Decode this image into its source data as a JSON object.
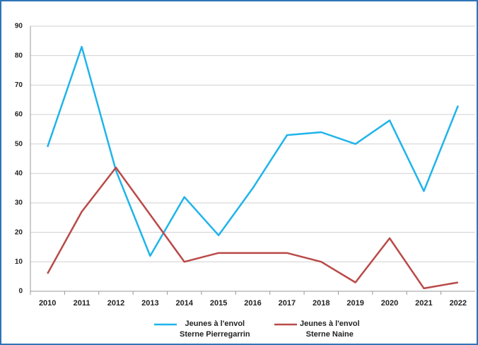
{
  "chart_data": {
    "type": "line",
    "categories": [
      "2010",
      "2011",
      "2012",
      "2013",
      "2014",
      "2015",
      "2016",
      "2017",
      "2018",
      "2019",
      "2020",
      "2021",
      "2022"
    ],
    "series": [
      {
        "name": "Jeunes à l'envol\nSterne Pierregarrin",
        "color": "#1fb4ea",
        "values": [
          49,
          83,
          41,
          12,
          32,
          19,
          35,
          53,
          54,
          50,
          58,
          34,
          63
        ]
      },
      {
        "name": "Jeunes à l'envol\nSterne Naine",
        "color": "#b94a48",
        "values": [
          6,
          27,
          42,
          26,
          10,
          13,
          13,
          13,
          10,
          3,
          18,
          1,
          3
        ]
      }
    ],
    "ylim": [
      0,
      90
    ],
    "yticks": [
      0,
      10,
      20,
      30,
      40,
      50,
      60,
      70,
      80,
      90
    ],
    "grid": true,
    "legend": "bottom"
  }
}
